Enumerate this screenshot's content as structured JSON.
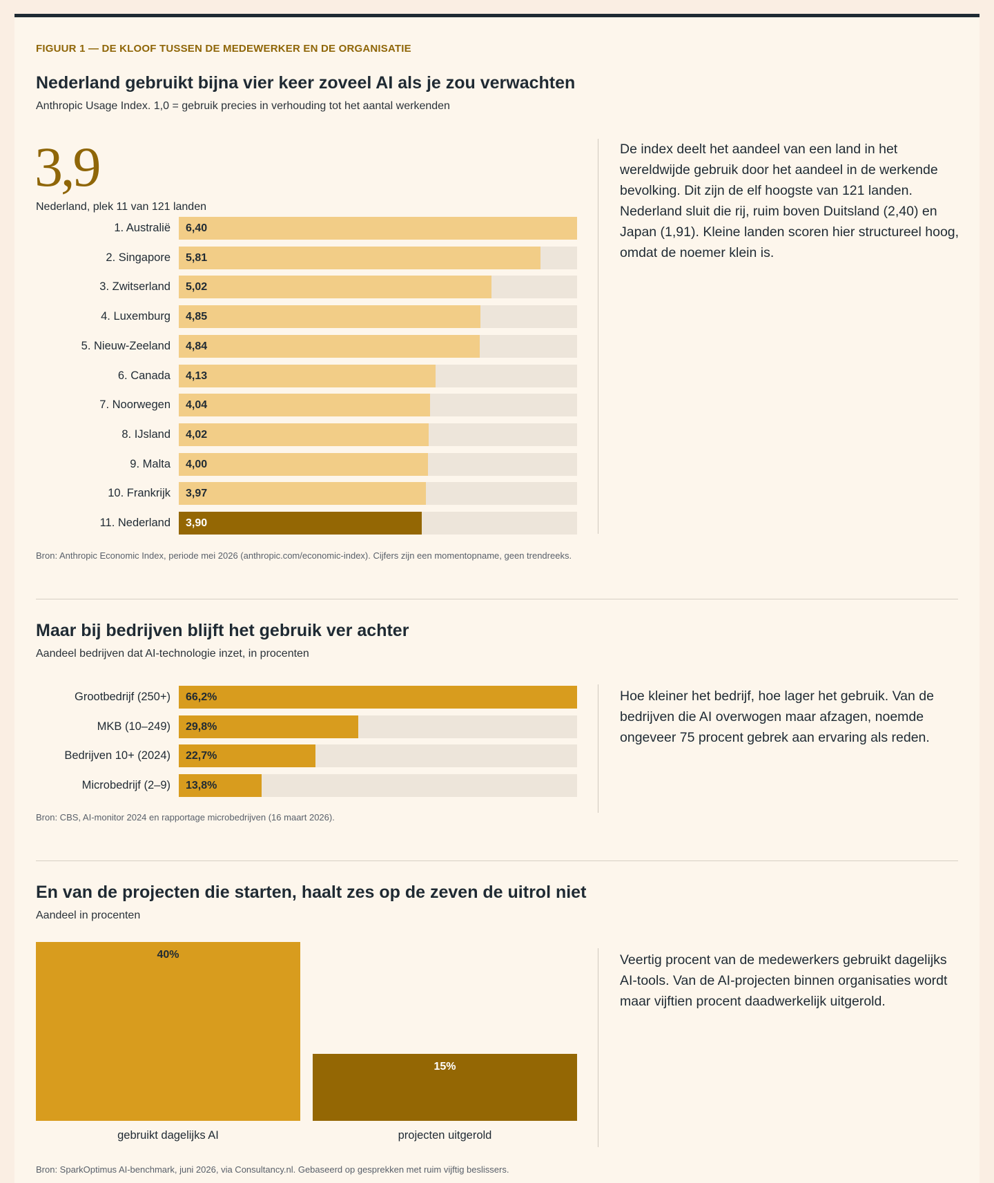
{
  "figure_label": "FIGUUR 1 — DE KLOOF TUSSEN DE MEDEWERKER EN DE ORGANISATIE",
  "colors": {
    "light_bar": "#f2cd87",
    "dark_bar": "#946704",
    "mid_bar": "#d89c1e",
    "track": "#ede5da",
    "accent_text": "#8f6608"
  },
  "section1": {
    "title": "Nederland gebruikt bijna vier keer zoveel AI als je zou verwachten",
    "subtitle": "Anthropic Usage Index. 1,0 = gebruik precies in verhouding tot het aantal werkenden",
    "big_number": "3,9",
    "big_label": "Nederland, plek 11 van 121 landen",
    "note": "De index deelt het aandeel van een land in het wereldwijde gebruik door het aandeel in de werkende bevolking. Dit zijn de elf hoogste van 121 landen. Nederland sluit die rij, ruim boven Duitsland (2,40) en Japan (1,91). Kleine landen scoren hier structureel hoog, omdat de noemer klein is.",
    "source": "Bron: Anthropic Economic Index, periode mei 2026 (anthropic.com/economic-index). Cijfers zijn een momentopname, geen trendreeks."
  },
  "section2": {
    "title": "Maar bij bedrijven blijft het gebruik ver achter",
    "subtitle": "Aandeel bedrijven dat AI-technologie inzet, in procenten",
    "note": "Hoe kleiner het bedrijf, hoe lager het gebruik. Van de bedrijven die AI overwogen maar afzagen, noemde ongeveer 75 procent gebrek aan ervaring als reden.",
    "source": "Bron: CBS, AI-monitor 2024 en rapportage microbedrijven (16 maart 2026)."
  },
  "section3": {
    "title": "En van de projecten die starten, haalt zes op de zeven de uitrol niet",
    "subtitle": "Aandeel in procenten",
    "note": "Veertig procent van de medewerkers gebruikt dagelijks AI-tools. Van de AI-projecten binnen organisaties wordt maar vijftien procent daadwerkelijk uitgerold.",
    "source": "Bron: SparkOptimus AI-benchmark, juni 2026, via Consultancy.nl. Gebaseerd op gesprekken met ruim vijftig beslissers."
  },
  "chart_data": [
    {
      "type": "bar",
      "orientation": "horizontal",
      "categories": [
        "1. Australië",
        "2. Singapore",
        "3. Zwitserland",
        "4. Luxemburg",
        "5. Nieuw-Zeeland",
        "6. Canada",
        "7. Noorwegen",
        "8. IJsland",
        "9. Malta",
        "10. Frankrijk",
        "11. Nederland"
      ],
      "values": [
        6.4,
        5.81,
        5.02,
        4.85,
        4.84,
        4.13,
        4.04,
        4.02,
        4.0,
        3.97,
        3.9
      ],
      "value_labels": [
        "6,40",
        "5,81",
        "5,02",
        "4,85",
        "4,84",
        "4,13",
        "4,04",
        "4,02",
        "4,00",
        "3,97",
        "3,90"
      ],
      "highlight": "11. Nederland",
      "xlim": [
        0,
        6.4
      ]
    },
    {
      "type": "bar",
      "orientation": "horizontal",
      "categories": [
        "Grootbedrijf (250+)",
        "MKB (10–249)",
        "Bedrijven 10+ (2024)",
        "Microbedrijf (2–9)"
      ],
      "values": [
        66.2,
        29.8,
        22.7,
        13.8
      ],
      "value_labels": [
        "66,2%",
        "29,8%",
        "22,7%",
        "13,8%"
      ],
      "xlim": [
        0,
        66.2
      ]
    },
    {
      "type": "bar",
      "orientation": "vertical",
      "categories": [
        "gebruikt dagelijks AI",
        "projecten uitgerold"
      ],
      "values": [
        40,
        15
      ],
      "value_labels": [
        "40%",
        "15%"
      ],
      "ylim": [
        0,
        40
      ]
    }
  ]
}
